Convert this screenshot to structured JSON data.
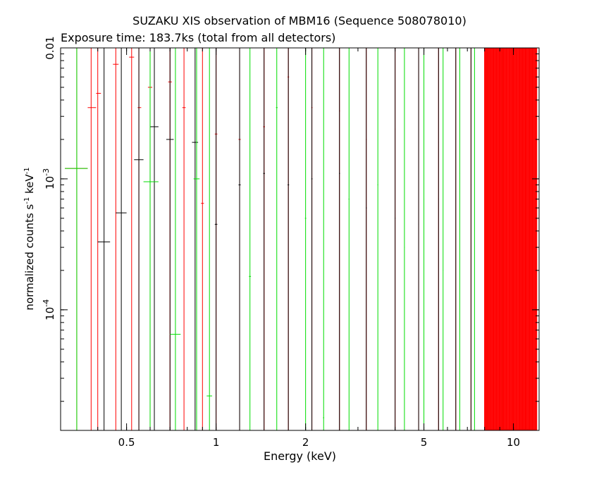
{
  "chart_data": {
    "type": "scatter",
    "title": "SUZAKU XIS observation of MBM16 (Sequence 508078010)",
    "subtitle": "Exposure time: 183.7ks (total from all detectors)",
    "xlabel": "Energy (keV)",
    "ylabel": {
      "text": "normalized counts s",
      "exp1": "-1",
      "mid": " keV",
      "exp2": "-1"
    },
    "x_scale": "log",
    "y_scale": "log",
    "xlim": [
      0.3,
      12.2
    ],
    "ylim": [
      1.2e-05,
      0.01
    ],
    "x_ticks": [
      {
        "value": 0.5,
        "label": "0.5"
      },
      {
        "value": 1,
        "label": "1"
      },
      {
        "value": 2,
        "label": "2"
      },
      {
        "value": 5,
        "label": "5"
      },
      {
        "value": 10,
        "label": "10"
      }
    ],
    "y_ticks": [
      {
        "value": 0.0001,
        "label": "10",
        "exp": "-4"
      },
      {
        "value": 0.001,
        "label": "10",
        "exp": "-3"
      },
      {
        "value": 0.01,
        "label": "0.01",
        "exp": ""
      }
    ],
    "legend": "none",
    "grid": false,
    "series": [
      {
        "color": "#ff0000",
        "points": [
          {
            "x": 0.34,
            "y": 0.0012,
            "xlo": 0.31,
            "xhi": 0.37
          },
          {
            "x": 0.38,
            "y": 0.0035,
            "xlo": 0.37,
            "xhi": 0.395
          },
          {
            "x": 0.4,
            "y": 0.0045,
            "xlo": 0.395,
            "xhi": 0.41
          },
          {
            "x": 0.46,
            "y": 0.0075,
            "xlo": 0.45,
            "xhi": 0.47
          },
          {
            "x": 0.52,
            "y": 0.0085,
            "xlo": 0.51,
            "xhi": 0.53
          },
          {
            "x": 0.55,
            "y": 0.0035,
            "xlo": 0.545,
            "xhi": 0.56
          },
          {
            "x": 0.6,
            "y": 0.005,
            "xlo": 0.59,
            "xhi": 0.61
          },
          {
            "x": 0.7,
            "y": 0.0055,
            "xlo": 0.69,
            "xhi": 0.71
          },
          {
            "x": 0.78,
            "y": 0.0035,
            "xlo": 0.77,
            "xhi": 0.79
          },
          {
            "x": 0.9,
            "y": 0.00065,
            "xlo": 0.89,
            "xhi": 0.91
          },
          {
            "x": 1.0,
            "y": 0.0022,
            "xlo": 0.99,
            "xhi": 1.01
          },
          {
            "x": 1.2,
            "y": 0.002,
            "xlo": 1.19,
            "xhi": 1.21
          },
          {
            "x": 1.45,
            "y": 0.0025,
            "xlo": 1.44,
            "xhi": 1.46
          },
          {
            "x": 1.75,
            "y": 0.006,
            "xlo": 1.74,
            "xhi": 1.76
          },
          {
            "x": 2.1,
            "y": 0.0035,
            "xlo": 2.09,
            "xhi": 2.11
          },
          {
            "x": 2.6,
            "y": 0.0033,
            "xlo": 2.59,
            "xhi": 2.61
          },
          {
            "x": 3.2,
            "y": 0.002,
            "xlo": 3.19,
            "xhi": 3.21
          },
          {
            "x": 4.0,
            "y": 0.0024,
            "xlo": 3.99,
            "xhi": 4.01
          },
          {
            "x": 4.8,
            "y": 0.0011,
            "xlo": 4.79,
            "xhi": 4.81
          },
          {
            "x": 5.6,
            "y": 0.0019,
            "xlo": 5.59,
            "xhi": 5.61
          },
          {
            "x": 6.4,
            "y": 0.0015,
            "xlo": 6.39,
            "xhi": 6.41
          },
          {
            "x": 7.2,
            "y": 0.0025,
            "xlo": 7.19,
            "xhi": 7.21
          },
          {
            "x": 8.0,
            "y": 0.003,
            "xlo": 7.99,
            "xhi": 8.01
          },
          {
            "x": 9.0,
            "y": 0.0045,
            "xlo": 8.99,
            "xhi": 9.01
          },
          {
            "x": 10.0,
            "y": 0.006,
            "xlo": 9.99,
            "xhi": 10.01
          },
          {
            "x": 11.0,
            "y": 0.0075,
            "xlo": 10.99,
            "xhi": 11.01
          }
        ]
      },
      {
        "color": "#000000",
        "points": [
          {
            "x": 0.42,
            "y": 0.00033,
            "xlo": 0.4,
            "xhi": 0.44
          },
          {
            "x": 0.48,
            "y": 0.00055,
            "xlo": 0.46,
            "xhi": 0.5
          },
          {
            "x": 0.55,
            "y": 0.0014,
            "xlo": 0.53,
            "xhi": 0.57
          },
          {
            "x": 0.62,
            "y": 0.0025,
            "xlo": 0.6,
            "xhi": 0.64
          },
          {
            "x": 0.7,
            "y": 0.002,
            "xlo": 0.68,
            "xhi": 0.72
          },
          {
            "x": 0.85,
            "y": 0.0019,
            "xlo": 0.83,
            "xhi": 0.87
          },
          {
            "x": 1.0,
            "y": 0.00045,
            "xlo": 0.99,
            "xhi": 1.01
          },
          {
            "x": 1.2,
            "y": 0.0009,
            "xlo": 1.19,
            "xhi": 1.21
          },
          {
            "x": 1.45,
            "y": 0.0011,
            "xlo": 1.44,
            "xhi": 1.46
          },
          {
            "x": 1.75,
            "y": 0.0009,
            "xlo": 1.74,
            "xhi": 1.76
          },
          {
            "x": 2.1,
            "y": 0.001,
            "xlo": 2.09,
            "xhi": 2.11
          },
          {
            "x": 2.6,
            "y": 0.0011,
            "xlo": 2.59,
            "xhi": 2.61
          },
          {
            "x": 3.2,
            "y": 0.0006,
            "xlo": 3.19,
            "xhi": 3.21
          },
          {
            "x": 4.0,
            "y": 0.0005,
            "xlo": 3.99,
            "xhi": 4.01
          },
          {
            "x": 4.8,
            "y": 0.00045,
            "xlo": 4.79,
            "xhi": 4.81
          },
          {
            "x": 5.6,
            "y": 0.0007,
            "xlo": 5.59,
            "xhi": 5.61
          },
          {
            "x": 6.4,
            "y": 0.0008,
            "xlo": 6.39,
            "xhi": 6.41
          },
          {
            "x": 7.2,
            "y": 0.0009,
            "xlo": 7.19,
            "xhi": 7.21
          }
        ]
      },
      {
        "color": "#00dd00",
        "points": [
          {
            "x": 0.34,
            "y": 0.0012,
            "xlo": 0.31,
            "xhi": 0.37
          },
          {
            "x": 0.6,
            "y": 0.00095,
            "xlo": 0.57,
            "xhi": 0.64
          },
          {
            "x": 0.73,
            "y": 6.5e-05,
            "xlo": 0.7,
            "xhi": 0.76
          },
          {
            "x": 0.86,
            "y": 0.001,
            "xlo": 0.84,
            "xhi": 0.88
          },
          {
            "x": 0.95,
            "y": 2.2e-05,
            "xlo": 0.93,
            "xhi": 0.97
          },
          {
            "x": 1.3,
            "y": 0.00018,
            "xlo": 1.29,
            "xhi": 1.31
          },
          {
            "x": 1.6,
            "y": 0.0035,
            "xlo": 1.59,
            "xhi": 1.61
          },
          {
            "x": 2.0,
            "y": 0.0005,
            "xlo": 1.99,
            "xhi": 2.01
          },
          {
            "x": 2.3,
            "y": 1.5e-05,
            "xlo": 2.29,
            "xhi": 2.31
          },
          {
            "x": 2.8,
            "y": 0.0007,
            "xlo": 2.79,
            "xhi": 2.81
          },
          {
            "x": 3.5,
            "y": 0.0009,
            "xlo": 3.49,
            "xhi": 3.51
          },
          {
            "x": 4.3,
            "y": 0.0003,
            "xlo": 4.29,
            "xhi": 4.31
          },
          {
            "x": 5.0,
            "y": 0.0007,
            "xlo": 4.99,
            "xhi": 5.01
          },
          {
            "x": 5.8,
            "y": 0.0002,
            "xlo": 5.79,
            "xhi": 5.81
          },
          {
            "x": 6.6,
            "y": 0.0011,
            "xlo": 6.59,
            "xhi": 6.61
          },
          {
            "x": 7.4,
            "y": 0.0004,
            "xlo": 7.39,
            "xhi": 7.41
          },
          {
            "x": 8.2,
            "y": 0.0008,
            "xlo": 8.19,
            "xhi": 8.21
          },
          {
            "x": 9.2,
            "y": 0.0003,
            "xlo": 9.19,
            "xhi": 9.21
          },
          {
            "x": 10.5,
            "y": 0.0006,
            "xlo": 10.49,
            "xhi": 10.51
          }
        ]
      }
    ]
  }
}
